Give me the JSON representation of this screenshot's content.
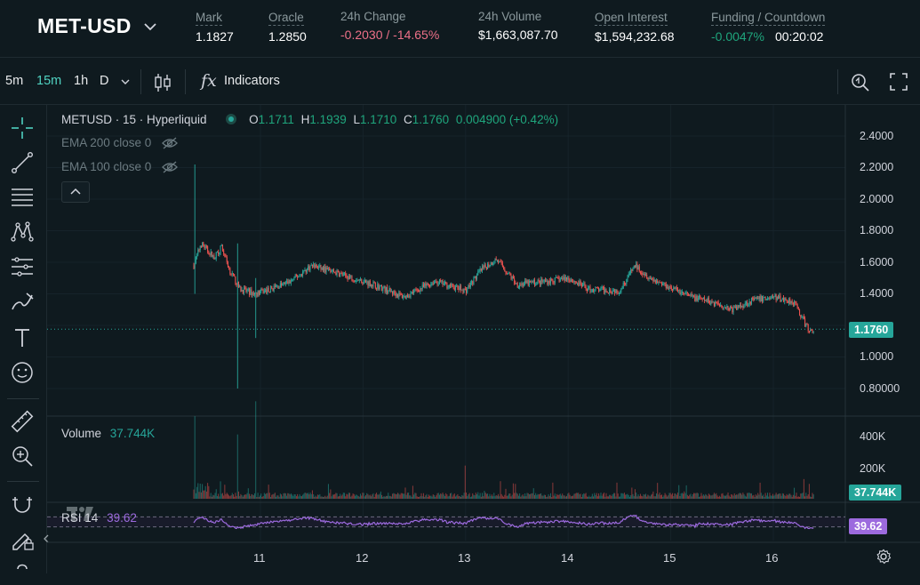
{
  "header": {
    "pair": "MET-USD",
    "mark_label": "Mark",
    "mark_value": "1.1827",
    "oracle_label": "Oracle",
    "oracle_value": "1.2850",
    "change_label": "24h Change",
    "change_value": "-0.2030 / -14.65%",
    "volume_label": "24h Volume",
    "volume_value": "$1,663,087.70",
    "oi_label": "Open Interest",
    "oi_value": "$1,594,232.68",
    "funding_label": "Funding / Countdown",
    "funding_value": "-0.0047%",
    "countdown_value": "00:20:02"
  },
  "toolbar": {
    "timeframes": [
      "5m",
      "15m",
      "1h",
      "D"
    ],
    "active_timeframe": "15m",
    "indicators_label": "Indicators",
    "fx_label": "fx"
  },
  "chart_legend": {
    "symbol": "METUSD · 15 · Hyperliquid",
    "o_label": "O",
    "o_value": "1.1711",
    "h_label": "H",
    "h_value": "1.1939",
    "l_label": "L",
    "l_value": "1.1710",
    "c_label": "C",
    "c_value": "1.1760",
    "change": "0.004900 (+0.42%)",
    "ema200": "EMA 200 close 0",
    "ema100": "EMA 100 close 0"
  },
  "volume_legend": {
    "label": "Volume",
    "value": "37.744K"
  },
  "rsi_legend": {
    "label": "RSI",
    "period": "14",
    "value": "39.62"
  },
  "tags": {
    "last_price": "1.1760",
    "volume": "37.744K",
    "rsi": "39.62"
  },
  "colors": {
    "up": "#26a69a",
    "down": "#ef5350",
    "accent": "#50d2c1",
    "rsi": "#9c6ade",
    "background": "#0f1a1f",
    "negative_text": "#ed7088"
  },
  "icons": {
    "tools": [
      "crosshair-icon",
      "trend-line-icon",
      "fib-retracement-icon",
      "pattern-icon",
      "prediction-icon",
      "brush-icon",
      "text-icon",
      "emoji-icon",
      "ruler-icon",
      "zoom-in-icon",
      "magnet-icon",
      "lock-drawings-icon"
    ],
    "toolbar": [
      "candle-type-icon",
      "indicators-fx-icon",
      "screenshot-icon",
      "fullscreen-icon"
    ]
  },
  "chart_data": [
    {
      "type": "candlestick",
      "title": "METUSD · 15 · Hyperliquid",
      "x_tick_labels": [
        "11",
        "12",
        "13",
        "14",
        "15",
        "16"
      ],
      "y_tick_labels": [
        "2.4000",
        "2.2000",
        "2.0000",
        "1.8000",
        "1.6000",
        "1.4000",
        "1.0000",
        "0.80000"
      ],
      "ylim": [
        0.8,
        2.4
      ],
      "last_close": 1.176,
      "trend": {
        "x_day": [
          10.35,
          10.42,
          10.55,
          10.62,
          10.7,
          10.8,
          10.95,
          11.1,
          11.3,
          11.5,
          11.8,
          12.1,
          12.4,
          12.7,
          13.0,
          13.15,
          13.3,
          13.5,
          13.8,
          14.0,
          14.2,
          14.5,
          14.65,
          14.8,
          15.0,
          15.2,
          15.45,
          15.6,
          15.8,
          16.0,
          16.2,
          16.35,
          16.4
        ],
        "close": [
          1.58,
          1.72,
          1.63,
          1.7,
          1.55,
          1.43,
          1.4,
          1.43,
          1.48,
          1.58,
          1.52,
          1.46,
          1.38,
          1.48,
          1.42,
          1.55,
          1.62,
          1.46,
          1.48,
          1.5,
          1.43,
          1.42,
          1.58,
          1.5,
          1.44,
          1.38,
          1.34,
          1.3,
          1.36,
          1.38,
          1.35,
          1.16,
          1.18
        ]
      },
      "spikes": [
        {
          "x_day": 10.36,
          "high": 2.22,
          "low": 1.4
        },
        {
          "x_day": 10.78,
          "high": 1.72,
          "low": 0.8
        },
        {
          "x_day": 10.95,
          "high": 1.5,
          "low": 1.12
        }
      ]
    },
    {
      "type": "bar",
      "title": "Volume",
      "y_tick_labels": [
        "400K",
        "200K"
      ],
      "ylim": [
        0,
        450000
      ],
      "last_value": 37744,
      "peaks": [
        {
          "x_day": 10.36,
          "value": 360000
        },
        {
          "x_day": 10.78,
          "value": 310000
        },
        {
          "x_day": 10.95,
          "value": 470000
        },
        {
          "x_day": 13.0,
          "value": 160000
        },
        {
          "x_day": 16.3,
          "value": 95000
        }
      ]
    },
    {
      "type": "line",
      "title": "RSI 14",
      "ylim": [
        0,
        100
      ],
      "bands": [
        70,
        30
      ],
      "last_value": 39.62
    }
  ]
}
